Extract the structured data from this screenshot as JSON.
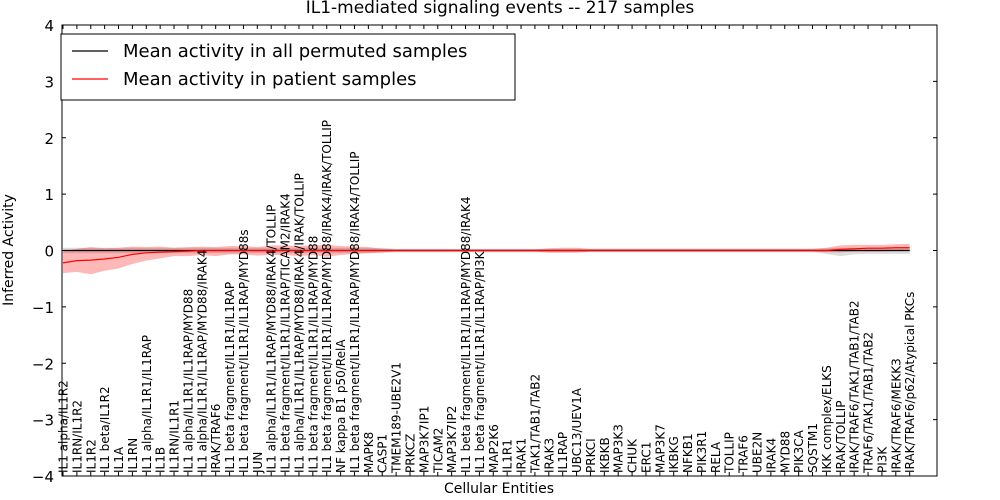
{
  "chart_data": {
    "type": "line",
    "title": "IL1-mediated signaling events -- 217 samples",
    "xlabel": "Cellular Entities",
    "ylabel": "Inferred Activity",
    "ylim": [
      -4,
      4
    ],
    "yticks": [
      -4,
      -3,
      -2,
      -1,
      0,
      1,
      2,
      3,
      4
    ],
    "ytick_labels": [
      "−4",
      "−3",
      "−2",
      "−1",
      "0",
      "1",
      "2",
      "3",
      "4"
    ],
    "legend": {
      "position": "top-left",
      "entries": [
        {
          "label": "Mean activity in all permuted samples",
          "color": "#000000"
        },
        {
          "label": "Mean activity in patient samples",
          "color": "#ff0000"
        }
      ]
    },
    "categories": [
      "IL1 alpha/IL1R2",
      "IL1RN/IL1R2",
      "IL1R2",
      "IL1 beta/IL1R2",
      "IL1A",
      "IL1RN",
      "IL1 alpha/IL1R1/IL1RAP",
      "IL1B",
      "IL1RN/IL1R1",
      "IL1 alpha/IL1R1/IL1RAP/MYD88",
      "IL1 alpha/IL1R1/IL1RAP/MYD88/IRAK4",
      "IRAK/TRAF6",
      "IL1 beta fragment/IL1R1/IL1RAP",
      "IL1 beta fragment/IL1R1/IL1RAP/MYD88s",
      "JUN",
      "IL1 alpha/IL1R1/IL1RAP/MYD88/IRAK4/TOLLIP",
      "IL1 beta fragment/IL1R1/IL1RAP/TICAM2/IRAK4",
      "IL1 alpha/IL1R1/IL1RAP/MYD88/IRAK4/IRAK/TOLLIP",
      "IL1 beta fragment/IL1R1/IL1RAP/MYD88",
      "IL1 beta fragment/IL1R1/IL1RAP/MYD88/IRAK4/IRAK/TOLLIP",
      "NF kappa B1 p50/RelA",
      "IL1 beta fragment/IL1R1/IL1RAP/MYD88/IRAK4/TOLLIP",
      "MAPK8",
      "CASP1",
      "TMEM189-UBE2V1",
      "PRKCZ",
      "MAP3K7IP1",
      "TICAM2",
      "MAP3K7IP2",
      "IL1 beta fragment/IL1R1/IL1RAP/MYD88/IRAK4",
      "IL1 beta fragment/IL1R1/IL1RAP/PI3K",
      "MAP2K6",
      "IL1R1",
      "IRAK1",
      "TAK1/TAB1/TAB2",
      "IRAK3",
      "IL1RAP",
      "UBC13/UEV1A",
      "PRKCI",
      "IKBKB",
      "MAP3K3",
      "CHUK",
      "ERC1",
      "MAP3K7",
      "IKBKG",
      "NFKB1",
      "PIK3R1",
      "RELA",
      "TOLLIP",
      "TRAF6",
      "UBE2N",
      "IRAK4",
      "MYD88",
      "PIK3CA",
      "SQSTM1",
      "IKK complex/ELKS",
      "IRAK/TOLLIP",
      "IRAK/TRAF6/TAK1/TAB1/TAB2",
      "TRAF6/TAK1/TAB1/TAB2",
      "PI3K",
      "IRAK/TRAF6/MEKK3",
      "IRAK/TRAF6/p62/Atypical PKCs"
    ],
    "series": [
      {
        "name": "Mean activity in patient samples",
        "color": "#ff0000",
        "values": [
          -0.22,
          -0.18,
          -0.17,
          -0.15,
          -0.12,
          -0.07,
          -0.04,
          -0.03,
          -0.02,
          -0.01,
          0.0,
          0.0,
          0.0,
          0.0,
          0.0,
          0.0,
          0.0,
          0.0,
          0.0,
          0.0,
          0.0,
          0.0,
          0.0,
          0.0,
          0.0,
          0.0,
          0.0,
          0.0,
          0.0,
          0.0,
          0.0,
          0.0,
          0.0,
          0.0,
          0.0,
          0.0,
          0.0,
          0.0,
          0.0,
          0.0,
          0.0,
          0.0,
          0.0,
          0.0,
          0.0,
          0.0,
          0.0,
          0.0,
          0.0,
          0.0,
          0.0,
          0.0,
          0.0,
          0.0,
          0.0,
          0.0,
          0.02,
          0.03,
          0.04,
          0.04,
          0.05,
          0.05
        ],
        "upper": [
          -0.02,
          0.03,
          0.06,
          0.04,
          0.05,
          0.07,
          0.06,
          0.07,
          0.05,
          0.06,
          0.07,
          0.06,
          0.08,
          0.08,
          0.06,
          0.09,
          0.09,
          0.08,
          0.09,
          0.1,
          0.08,
          0.07,
          0.06,
          0.03,
          0.02,
          0.02,
          0.02,
          0.02,
          0.02,
          0.02,
          0.02,
          0.02,
          0.02,
          0.02,
          0.02,
          0.04,
          0.05,
          0.05,
          0.03,
          0.03,
          0.03,
          0.03,
          0.03,
          0.03,
          0.03,
          0.03,
          0.03,
          0.03,
          0.03,
          0.03,
          0.03,
          0.03,
          0.03,
          0.03,
          0.03,
          0.05,
          0.09,
          0.1,
          0.1,
          0.1,
          0.11,
          0.12
        ],
        "lower": [
          -0.4,
          -0.38,
          -0.42,
          -0.36,
          -0.32,
          -0.24,
          -0.18,
          -0.14,
          -0.1,
          -0.1,
          -0.08,
          -0.1,
          -0.07,
          -0.07,
          -0.09,
          -0.08,
          -0.08,
          -0.1,
          -0.08,
          -0.11,
          -0.08,
          -0.06,
          -0.05,
          -0.03,
          -0.02,
          -0.02,
          -0.02,
          -0.02,
          -0.02,
          -0.02,
          -0.02,
          -0.02,
          -0.02,
          -0.02,
          -0.02,
          -0.04,
          -0.04,
          -0.04,
          -0.02,
          -0.02,
          -0.02,
          -0.02,
          -0.02,
          -0.02,
          -0.02,
          -0.02,
          -0.02,
          -0.02,
          -0.02,
          -0.02,
          -0.02,
          -0.02,
          -0.02,
          -0.02,
          -0.02,
          -0.03,
          -0.03,
          -0.02,
          -0.02,
          -0.02,
          -0.01,
          -0.01
        ]
      },
      {
        "name": "Mean activity in all permuted samples",
        "color": "#000000",
        "values": [
          0.0,
          0.0,
          0.0,
          0.0,
          0.0,
          0.0,
          0.0,
          0.0,
          0.0,
          0.0,
          0.0,
          0.0,
          0.0,
          0.0,
          0.0,
          0.0,
          0.0,
          0.0,
          0.0,
          0.0,
          0.0,
          0.0,
          0.0,
          0.0,
          0.0,
          0.0,
          0.0,
          0.0,
          0.0,
          0.0,
          0.0,
          0.0,
          0.0,
          0.0,
          0.0,
          0.0,
          0.0,
          0.0,
          0.0,
          0.0,
          0.0,
          0.0,
          0.0,
          0.0,
          0.0,
          0.0,
          0.0,
          0.0,
          0.0,
          0.0,
          0.0,
          0.0,
          0.0,
          0.0,
          0.0,
          0.0,
          0.0,
          0.0,
          0.0,
          0.0,
          0.0,
          0.0
        ],
        "upper": [
          0.05,
          0.05,
          0.05,
          0.05,
          0.05,
          0.05,
          0.05,
          0.05,
          0.05,
          0.05,
          0.05,
          0.05,
          0.05,
          0.05,
          0.05,
          0.05,
          0.05,
          0.05,
          0.05,
          0.05,
          0.05,
          0.05,
          0.05,
          0.05,
          0.03,
          0.03,
          0.03,
          0.03,
          0.03,
          0.03,
          0.03,
          0.03,
          0.03,
          0.03,
          0.03,
          0.03,
          0.03,
          0.03,
          0.03,
          0.03,
          0.03,
          0.03,
          0.03,
          0.03,
          0.03,
          0.03,
          0.03,
          0.03,
          0.03,
          0.03,
          0.03,
          0.03,
          0.03,
          0.03,
          0.03,
          0.04,
          0.05,
          0.05,
          0.05,
          0.05,
          0.05,
          0.05
        ],
        "lower": [
          -0.05,
          -0.05,
          -0.05,
          -0.05,
          -0.05,
          -0.05,
          -0.05,
          -0.05,
          -0.05,
          -0.05,
          -0.05,
          -0.05,
          -0.05,
          -0.05,
          -0.05,
          -0.05,
          -0.05,
          -0.05,
          -0.05,
          -0.05,
          -0.05,
          -0.05,
          -0.05,
          -0.05,
          -0.03,
          -0.03,
          -0.03,
          -0.03,
          -0.03,
          -0.03,
          -0.03,
          -0.03,
          -0.03,
          -0.03,
          -0.03,
          -0.03,
          -0.03,
          -0.03,
          -0.03,
          -0.03,
          -0.03,
          -0.03,
          -0.03,
          -0.03,
          -0.03,
          -0.03,
          -0.03,
          -0.03,
          -0.03,
          -0.03,
          -0.03,
          -0.03,
          -0.03,
          -0.03,
          -0.03,
          -0.06,
          -0.1,
          -0.07,
          -0.06,
          -0.06,
          -0.06,
          -0.06
        ]
      }
    ]
  }
}
